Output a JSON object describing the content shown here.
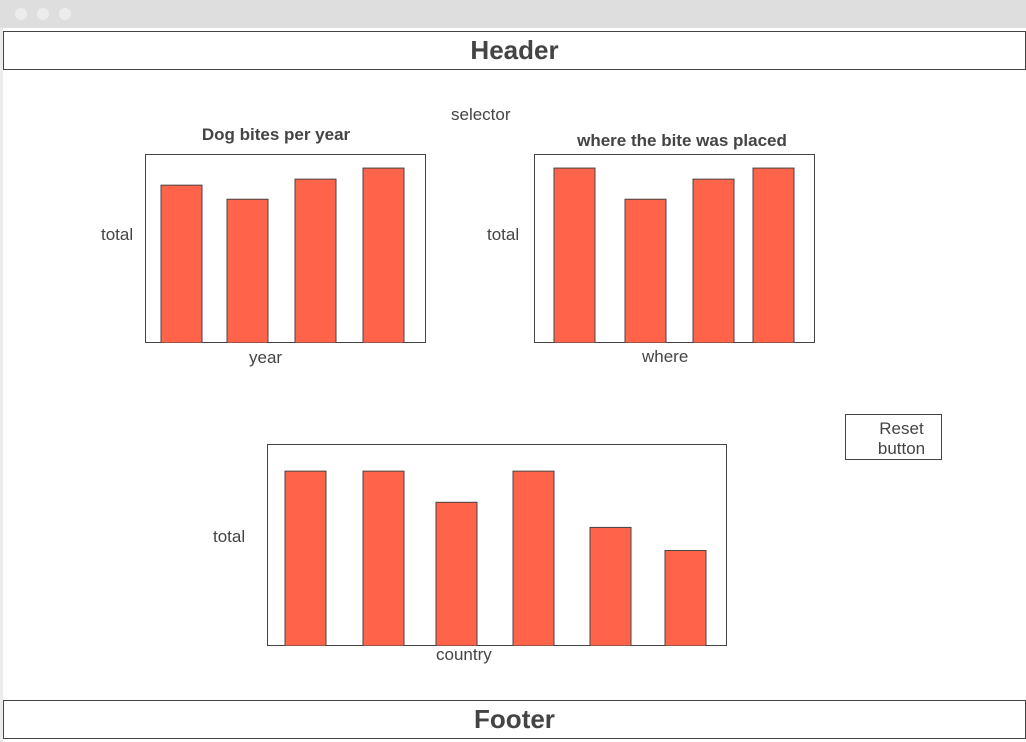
{
  "header": {
    "title": "Header"
  },
  "footer": {
    "title": "Footer"
  },
  "selector": {
    "label": "selector"
  },
  "reset_button": {
    "line1": "Reset",
    "line2": "button"
  },
  "colors": {
    "bar_fill": "#ff644a",
    "stroke": "#444444",
    "text": "#444444"
  },
  "chart_data": [
    {
      "type": "bar",
      "title": "Dog bites per year",
      "xlabel": "year",
      "ylabel": "total",
      "values": [
        157,
        143,
        163,
        174
      ],
      "ylim": [
        0,
        188
      ]
    },
    {
      "type": "bar",
      "title": "where the bite was placed",
      "xlabel": "where",
      "ylabel": "total",
      "values": [
        174,
        143,
        163,
        174
      ],
      "ylim": [
        0,
        188
      ]
    },
    {
      "type": "bar",
      "title": "",
      "xlabel": "country",
      "ylabel": "total",
      "values": [
        174,
        174,
        143,
        174,
        118,
        95
      ],
      "ylim": [
        0,
        201
      ]
    }
  ]
}
